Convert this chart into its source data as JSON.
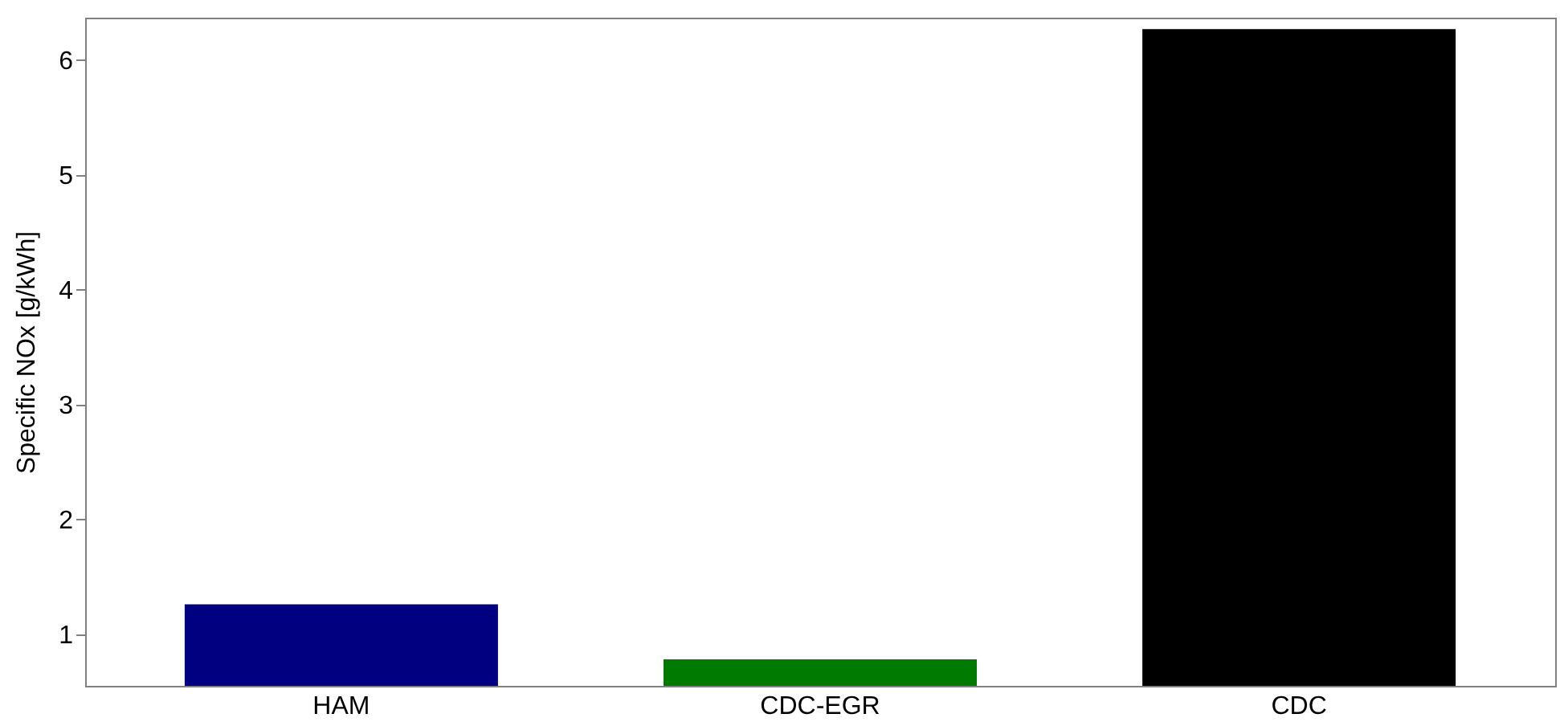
{
  "chart_data": {
    "type": "bar",
    "ylabel": "Specific NOx [g/kWh]",
    "categories": [
      "HAM",
      "CDC-EGR",
      "CDC"
    ],
    "values": [
      1.26,
      0.78,
      6.27
    ],
    "colors": [
      "#000080",
      "#007a00",
      "#000000"
    ],
    "ylim": [
      0.55,
      6.37
    ],
    "yticks": [
      1,
      2,
      3,
      4,
      5,
      6
    ],
    "grid": false
  }
}
